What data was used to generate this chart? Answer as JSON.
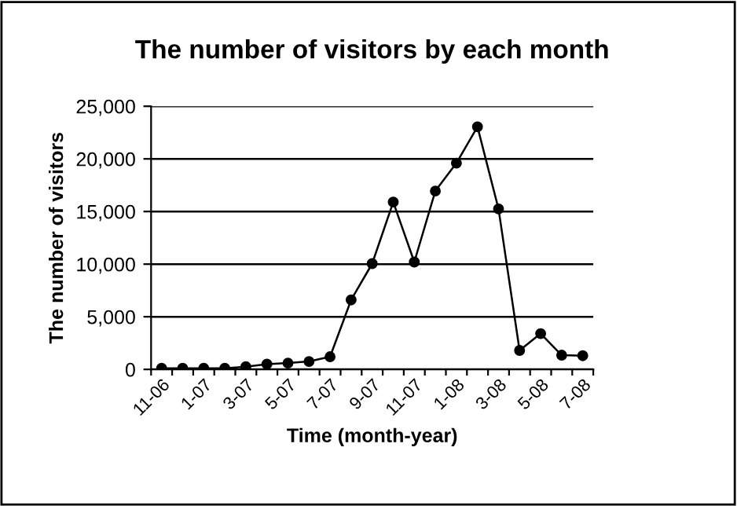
{
  "chart_data": {
    "type": "line",
    "title": "The number of visitors by each month",
    "xlabel": "Time (month-year)",
    "ylabel": "The number of visitors",
    "categories": [
      "11-06",
      null,
      "1-07",
      null,
      "3-07",
      null,
      "5-07",
      null,
      "7-07",
      null,
      "9-07",
      null,
      "11-07",
      null,
      "1-08",
      null,
      "3-08",
      null,
      "5-08",
      null,
      "7-08"
    ],
    "series": [
      {
        "color": "#000000",
        "values": [
          100,
          100,
          100,
          100,
          250,
          500,
          600,
          750,
          1200,
          6600,
          10050,
          15900,
          10200,
          16950,
          19600,
          23050,
          15250,
          1800,
          3400,
          1350,
          1300
        ]
      }
    ],
    "ylim": [
      0,
      25000
    ],
    "yticks": [
      {
        "value": 0,
        "label": "0"
      },
      {
        "value": 5000,
        "label": "5,000"
      },
      {
        "value": 10000,
        "label": "10,000"
      },
      {
        "value": 15000,
        "label": "15,000"
      },
      {
        "value": 20000,
        "label": "20,000"
      },
      {
        "value": 25000,
        "label": "25,000"
      }
    ],
    "grid": "y",
    "legend": false,
    "marker": "circle",
    "line_style": "solid"
  }
}
